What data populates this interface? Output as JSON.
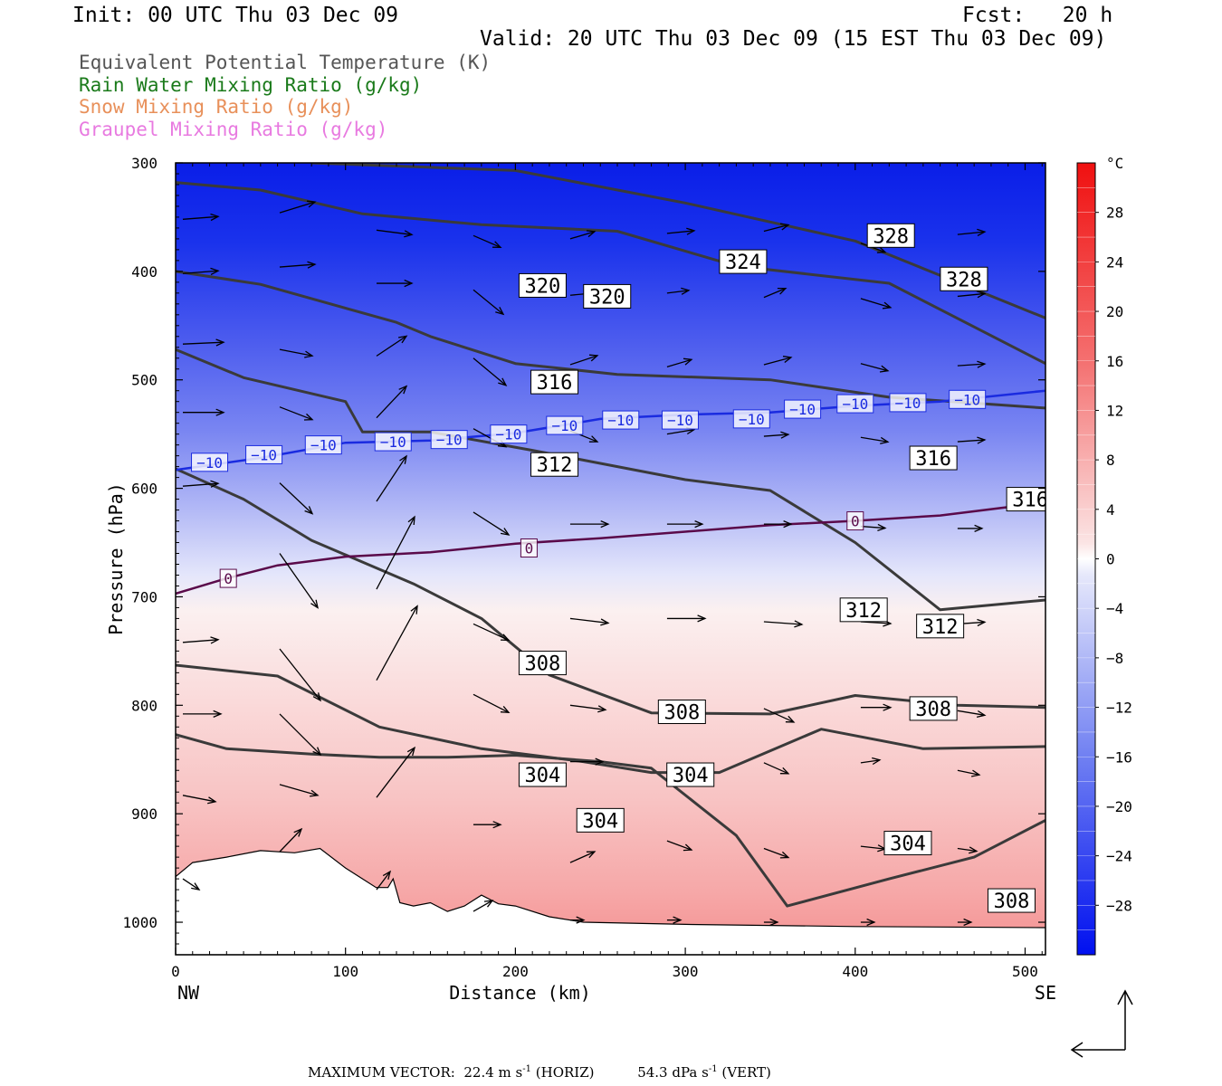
{
  "header": {
    "init": "Init: 00 UTC Thu 03 Dec 09",
    "fcst": "Fcst:   20 h",
    "valid": "Valid: 20 UTC Thu 03 Dec 09 (15 EST Thu 03 Dec 09)"
  },
  "legend": [
    {
      "text": "Equivalent Potential Temperature (K)",
      "color": "#555555"
    },
    {
      "text": "Rain Water Mixing Ratio (g/kg)",
      "color": "#1a7a1a"
    },
    {
      "text": "Snow Mixing Ratio (g/kg)",
      "color": "#e8905a"
    },
    {
      "text": "Graupel Mixing Ratio (g/kg)",
      "color": "#e87ae0"
    }
  ],
  "footer": {
    "label": "MAXIMUM VECTOR:",
    "horiz_value": "22.4 m s",
    "horiz_unit_exp": "-1",
    "horiz_tag": "(HORIZ)",
    "vert_value": "54.3 dPa s",
    "vert_unit_exp": "-1",
    "vert_tag": "(VERT)"
  },
  "chart_data": {
    "type": "cross-section",
    "xlabel": "Distance (km)",
    "ylabel": "Pressure (hPa)",
    "xlim": [
      0,
      512
    ],
    "ylim": [
      1030,
      300
    ],
    "xticks": [
      0,
      100,
      200,
      300,
      400,
      500
    ],
    "yticks": [
      300,
      400,
      500,
      600,
      700,
      800,
      900,
      1000
    ],
    "x_end_labels": {
      "left": "NW",
      "right": "SE"
    },
    "colorbar": {
      "unit": "°C",
      "tick_labels": [
        28,
        24,
        20,
        16,
        12,
        8,
        4,
        0,
        -4,
        -8,
        -12,
        -16,
        -20,
        -24,
        -28
      ],
      "range": [
        -32,
        32
      ]
    },
    "temperature_isotherms": [
      {
        "value": -10,
        "color": "#1a2be0",
        "label": "−10",
        "points": [
          [
            0,
            583
          ],
          [
            50,
            572
          ],
          [
            100,
            558
          ],
          [
            150,
            556
          ],
          [
            200,
            549
          ],
          [
            250,
            536
          ],
          [
            300,
            532
          ],
          [
            350,
            530
          ],
          [
            400,
            524
          ],
          [
            450,
            520
          ],
          [
            512,
            510
          ]
        ]
      },
      {
        "value": 0,
        "color": "#5a0a4a",
        "label": "0",
        "points": [
          [
            0,
            697
          ],
          [
            30,
            683
          ],
          [
            60,
            671
          ],
          [
            100,
            663
          ],
          [
            150,
            659
          ],
          [
            200,
            651
          ],
          [
            250,
            646
          ],
          [
            300,
            640
          ],
          [
            350,
            634
          ],
          [
            400,
            630
          ],
          [
            450,
            625
          ],
          [
            512,
            613
          ]
        ]
      }
    ],
    "theta_e_contours": [
      {
        "value": 328,
        "points": [
          [
            80,
            300
          ],
          [
            200,
            307
          ],
          [
            300,
            337
          ],
          [
            400,
            372
          ],
          [
            512,
            443
          ]
        ]
      },
      {
        "value": 324,
        "points": [
          [
            0,
            318
          ],
          [
            50,
            325
          ],
          [
            110,
            347
          ],
          [
            180,
            357
          ],
          [
            260,
            363
          ],
          [
            330,
            395
          ],
          [
            420,
            411
          ],
          [
            512,
            485
          ]
        ]
      },
      {
        "value": 320,
        "points": [
          [
            0,
            400
          ],
          [
            50,
            412
          ],
          [
            130,
            447
          ],
          [
            150,
            460
          ],
          [
            200,
            485
          ],
          [
            260,
            495
          ],
          [
            350,
            500
          ],
          [
            420,
            516
          ],
          [
            512,
            526
          ]
        ]
      },
      {
        "value": 316,
        "points": [
          [
            0,
            472
          ],
          [
            40,
            498
          ],
          [
            100,
            520
          ],
          [
            110,
            548
          ],
          [
            150,
            548
          ],
          [
            210,
            565
          ],
          [
            300,
            592
          ],
          [
            350,
            602
          ],
          [
            400,
            650
          ],
          [
            450,
            712
          ],
          [
            512,
            703
          ]
        ]
      },
      {
        "value": 312,
        "points": [
          [
            0,
            582
          ],
          [
            40,
            610
          ],
          [
            80,
            648
          ],
          [
            140,
            688
          ],
          [
            180,
            720
          ],
          [
            220,
            772
          ],
          [
            280,
            807
          ],
          [
            350,
            808
          ],
          [
            400,
            791
          ],
          [
            460,
            800
          ],
          [
            512,
            802
          ]
        ]
      },
      {
        "value": 308,
        "points": [
          [
            0,
            763
          ],
          [
            60,
            773
          ],
          [
            120,
            820
          ],
          [
            180,
            840
          ],
          [
            240,
            852
          ],
          [
            280,
            862
          ],
          [
            320,
            862
          ],
          [
            380,
            822
          ],
          [
            440,
            840
          ],
          [
            512,
            838
          ]
        ]
      },
      {
        "value": 304,
        "points": [
          [
            0,
            827
          ],
          [
            30,
            840
          ],
          [
            80,
            845
          ],
          [
            120,
            848
          ],
          [
            160,
            848
          ],
          [
            200,
            846
          ],
          [
            250,
            852
          ],
          [
            280,
            858
          ],
          [
            330,
            920
          ],
          [
            360,
            985
          ],
          [
            420,
            960
          ],
          [
            470,
            940
          ],
          [
            512,
            906
          ]
        ]
      }
    ],
    "theta_e_labels": [
      {
        "value": 328,
        "x": 421,
        "y": 367
      },
      {
        "value": 328,
        "x": 464,
        "y": 407
      },
      {
        "value": 324,
        "x": 334,
        "y": 391
      },
      {
        "value": 320,
        "x": 216,
        "y": 413
      },
      {
        "value": 320,
        "x": 254,
        "y": 423
      },
      {
        "value": 316,
        "x": 223,
        "y": 502
      },
      {
        "value": 316,
        "x": 446,
        "y": 572
      },
      {
        "value": 316,
        "x": 503,
        "y": 610
      },
      {
        "value": 312,
        "x": 223,
        "y": 578
      },
      {
        "value": 312,
        "x": 405,
        "y": 712
      },
      {
        "value": 312,
        "x": 450,
        "y": 727
      },
      {
        "value": 308,
        "x": 216,
        "y": 761
      },
      {
        "value": 308,
        "x": 298,
        "y": 806
      },
      {
        "value": 308,
        "x": 446,
        "y": 803
      },
      {
        "value": 304,
        "x": 216,
        "y": 864
      },
      {
        "value": 304,
        "x": 303,
        "y": 864
      },
      {
        "value": 304,
        "x": 250,
        "y": 906
      },
      {
        "value": 304,
        "x": 431,
        "y": 927
      },
      {
        "value": 308,
        "x": 492,
        "y": 980
      }
    ],
    "isotherm_labels": [
      {
        "text": "−10",
        "x": 20,
        "y": 576
      },
      {
        "text": "−10",
        "x": 52,
        "y": 569
      },
      {
        "text": "−10",
        "x": 87,
        "y": 560
      },
      {
        "text": "−10",
        "x": 128,
        "y": 557
      },
      {
        "text": "−10",
        "x": 161,
        "y": 555
      },
      {
        "text": "−10",
        "x": 196,
        "y": 550
      },
      {
        "text": "−10",
        "x": 229,
        "y": 542
      },
      {
        "text": "−10",
        "x": 262,
        "y": 537
      },
      {
        "text": "−10",
        "x": 297,
        "y": 537
      },
      {
        "text": "−10",
        "x": 339,
        "y": 536
      },
      {
        "text": "−10",
        "x": 369,
        "y": 527
      },
      {
        "text": "−10",
        "x": 400,
        "y": 522
      },
      {
        "text": "−10",
        "x": 431,
        "y": 521
      },
      {
        "text": "−10",
        "x": 466,
        "y": 518
      },
      {
        "text": "0",
        "x": 31,
        "y": 683
      },
      {
        "text": "0",
        "x": 208,
        "y": 655
      },
      {
        "text": "0",
        "x": 400,
        "y": 630
      }
    ],
    "wind_vectors": [
      {
        "x": 0,
        "p": 352,
        "dx": 26,
        "dp": -3
      },
      {
        "x": 57,
        "p": 346,
        "dx": 26,
        "dp": -12
      },
      {
        "x": 114,
        "p": 362,
        "dx": 26,
        "dp": 5
      },
      {
        "x": 171,
        "p": 367,
        "dx": 20,
        "dp": 13
      },
      {
        "x": 228,
        "p": 370,
        "dx": 18,
        "dp": -8
      },
      {
        "x": 285,
        "p": 365,
        "dx": 20,
        "dp": -3
      },
      {
        "x": 342,
        "p": 363,
        "dx": 18,
        "dp": -7
      },
      {
        "x": 399,
        "p": 374,
        "dx": 18,
        "dp": 10
      },
      {
        "x": 456,
        "p": 366,
        "dx": 20,
        "dp": -3
      },
      {
        "x": 0,
        "p": 402,
        "dx": 26,
        "dp": -3
      },
      {
        "x": 57,
        "p": 396,
        "dx": 26,
        "dp": -3
      },
      {
        "x": 114,
        "p": 411,
        "dx": 26,
        "dp": 0
      },
      {
        "x": 171,
        "p": 417,
        "dx": 22,
        "dp": 27
      },
      {
        "x": 228,
        "p": 422,
        "dx": 22,
        "dp": -3
      },
      {
        "x": 285,
        "p": 420,
        "dx": 16,
        "dp": -3
      },
      {
        "x": 342,
        "p": 424,
        "dx": 16,
        "dp": -10
      },
      {
        "x": 399,
        "p": 425,
        "dx": 22,
        "dp": 10
      },
      {
        "x": 456,
        "p": 423,
        "dx": 20,
        "dp": -3
      },
      {
        "x": 0,
        "p": 467,
        "dx": 30,
        "dp": -2
      },
      {
        "x": 57,
        "p": 472,
        "dx": 24,
        "dp": 7
      },
      {
        "x": 114,
        "p": 478,
        "dx": 22,
        "dp": -22
      },
      {
        "x": 171,
        "p": 480,
        "dx": 24,
        "dp": 30
      },
      {
        "x": 228,
        "p": 486,
        "dx": 20,
        "dp": -10
      },
      {
        "x": 285,
        "p": 488,
        "dx": 18,
        "dp": -8
      },
      {
        "x": 342,
        "p": 486,
        "dx": 20,
        "dp": -8
      },
      {
        "x": 399,
        "p": 485,
        "dx": 20,
        "dp": 8
      },
      {
        "x": 456,
        "p": 487,
        "dx": 20,
        "dp": -2
      },
      {
        "x": 0,
        "p": 530,
        "dx": 30,
        "dp": 0
      },
      {
        "x": 57,
        "p": 525,
        "dx": 24,
        "dp": 14
      },
      {
        "x": 114,
        "p": 535,
        "dx": 22,
        "dp": -35
      },
      {
        "x": 171,
        "p": 545,
        "dx": 24,
        "dp": 20
      },
      {
        "x": 228,
        "p": 547,
        "dx": 20,
        "dp": 12
      },
      {
        "x": 285,
        "p": 550,
        "dx": 20,
        "dp": -5
      },
      {
        "x": 342,
        "p": 552,
        "dx": 18,
        "dp": -2
      },
      {
        "x": 399,
        "p": 553,
        "dx": 20,
        "dp": 5
      },
      {
        "x": 456,
        "p": 557,
        "dx": 20,
        "dp": -2
      },
      {
        "x": 0,
        "p": 598,
        "dx": 26,
        "dp": -3
      },
      {
        "x": 57,
        "p": 595,
        "dx": 24,
        "dp": 34
      },
      {
        "x": 114,
        "p": 612,
        "dx": 22,
        "dp": -50
      },
      {
        "x": 171,
        "p": 622,
        "dx": 26,
        "dp": 25
      },
      {
        "x": 228,
        "p": 633,
        "dx": 28,
        "dp": 0
      },
      {
        "x": 285,
        "p": 633,
        "dx": 26,
        "dp": 0
      },
      {
        "x": 342,
        "p": 633,
        "dx": 20,
        "dp": 0
      },
      {
        "x": 399,
        "p": 635,
        "dx": 18,
        "dp": 2
      },
      {
        "x": 456,
        "p": 637,
        "dx": 18,
        "dp": 0
      },
      {
        "x": 0,
        "p": 658,
        "dx": 0,
        "dp": 0
      },
      {
        "x": 57,
        "p": 660,
        "dx": 28,
        "dp": 60
      },
      {
        "x": 114,
        "p": 693,
        "dx": 28,
        "dp": -80
      },
      {
        "x": 171,
        "p": 725,
        "dx": 26,
        "dp": 18
      },
      {
        "x": 228,
        "p": 720,
        "dx": 28,
        "dp": 5
      },
      {
        "x": 285,
        "p": 720,
        "dx": 28,
        "dp": 0
      },
      {
        "x": 342,
        "p": 723,
        "dx": 28,
        "dp": 3
      },
      {
        "x": 399,
        "p": 723,
        "dx": 22,
        "dp": 2
      },
      {
        "x": 456,
        "p": 725,
        "dx": 20,
        "dp": -2
      },
      {
        "x": 0,
        "p": 742,
        "dx": 26,
        "dp": -3
      },
      {
        "x": 57,
        "p": 748,
        "dx": 30,
        "dp": 57
      },
      {
        "x": 114,
        "p": 777,
        "dx": 30,
        "dp": -82
      },
      {
        "x": 171,
        "p": 790,
        "dx": 26,
        "dp": 20
      },
      {
        "x": 228,
        "p": 800,
        "dx": 26,
        "dp": 5
      },
      {
        "x": 285,
        "p": 803,
        "dx": 26,
        "dp": 0
      },
      {
        "x": 342,
        "p": 803,
        "dx": 22,
        "dp": 15
      },
      {
        "x": 399,
        "p": 802,
        "dx": 22,
        "dp": 0
      },
      {
        "x": 456,
        "p": 805,
        "dx": 20,
        "dp": 5
      },
      {
        "x": 0,
        "p": 808,
        "dx": 28,
        "dp": 0
      },
      {
        "x": 57,
        "p": 808,
        "dx": 30,
        "dp": 45
      },
      {
        "x": 114,
        "p": 885,
        "dx": 28,
        "dp": -55
      },
      {
        "x": 228,
        "p": 852,
        "dx": 24,
        "dp": 0
      },
      {
        "x": 285,
        "p": 856,
        "dx": 24,
        "dp": 0
      },
      {
        "x": 342,
        "p": 853,
        "dx": 18,
        "dp": 12
      },
      {
        "x": 399,
        "p": 853,
        "dx": 14,
        "dp": -3
      },
      {
        "x": 456,
        "p": 860,
        "dx": 16,
        "dp": 5
      },
      {
        "x": 0,
        "p": 883,
        "dx": 24,
        "dp": 7
      },
      {
        "x": 57,
        "p": 873,
        "dx": 28,
        "dp": 12
      },
      {
        "x": 171,
        "p": 910,
        "dx": 20,
        "dp": 0
      },
      {
        "x": 228,
        "p": 945,
        "dx": 18,
        "dp": -12
      },
      {
        "x": 285,
        "p": 925,
        "dx": 18,
        "dp": 10
      },
      {
        "x": 342,
        "p": 932,
        "dx": 18,
        "dp": 10
      },
      {
        "x": 399,
        "p": 930,
        "dx": 18,
        "dp": 3
      },
      {
        "x": 456,
        "p": 932,
        "dx": 14,
        "dp": 3
      },
      {
        "x": 0,
        "p": 960,
        "dx": 12,
        "dp": 12
      },
      {
        "x": 57,
        "p": 935,
        "dx": 16,
        "dp": -25
      },
      {
        "x": 114,
        "p": 970,
        "dx": 10,
        "dp": -20
      },
      {
        "x": 171,
        "p": 990,
        "dx": 14,
        "dp": -12
      },
      {
        "x": 228,
        "p": 998,
        "dx": 10,
        "dp": 0
      },
      {
        "x": 285,
        "p": 998,
        "dx": 10,
        "dp": 0
      },
      {
        "x": 342,
        "p": 1000,
        "dx": 10,
        "dp": 0
      },
      {
        "x": 399,
        "p": 1000,
        "dx": 10,
        "dp": 0
      },
      {
        "x": 456,
        "p": 1000,
        "dx": 10,
        "dp": 0
      }
    ],
    "terrain_surface": [
      [
        0,
        958
      ],
      [
        10,
        945
      ],
      [
        30,
        940
      ],
      [
        50,
        934
      ],
      [
        70,
        936
      ],
      [
        85,
        932
      ],
      [
        100,
        950
      ],
      [
        110,
        960
      ],
      [
        118,
        968
      ],
      [
        125,
        968
      ],
      [
        128,
        960
      ],
      [
        132,
        982
      ],
      [
        140,
        985
      ],
      [
        150,
        982
      ],
      [
        160,
        990
      ],
      [
        170,
        985
      ],
      [
        180,
        975
      ],
      [
        190,
        983
      ],
      [
        200,
        985
      ],
      [
        220,
        995
      ],
      [
        240,
        1000
      ],
      [
        300,
        1002
      ],
      [
        400,
        1004
      ],
      [
        512,
        1005
      ]
    ]
  }
}
